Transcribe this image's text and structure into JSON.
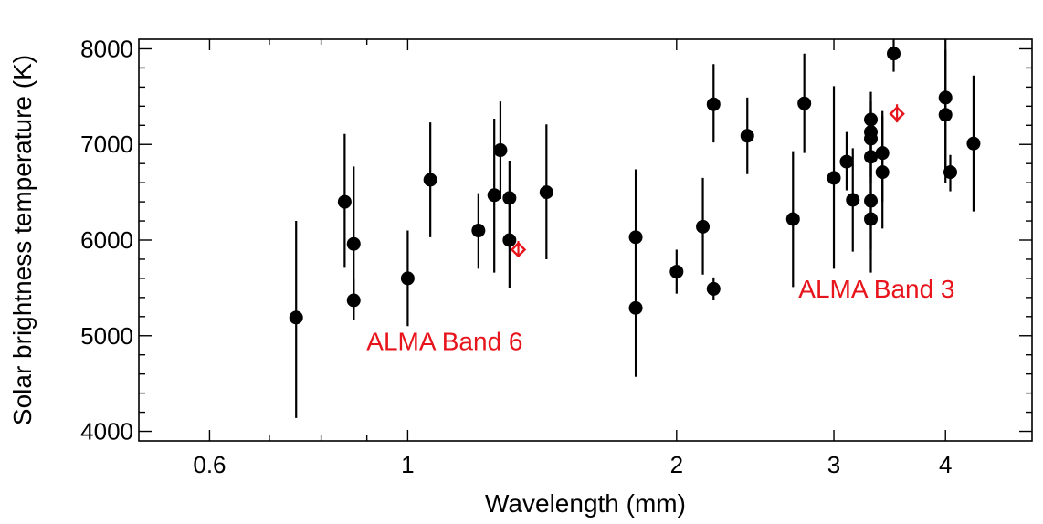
{
  "chart_data": {
    "type": "scatter",
    "title": "",
    "xlabel": "Wavelength (mm)",
    "ylabel": "Solar brightness temperature (K)",
    "x_scale": "log",
    "xlim": [
      0.5,
      5.0
    ],
    "ylim": [
      3900,
      8100
    ],
    "x_ticks": [
      {
        "value": 0.6,
        "label": "0.6"
      },
      {
        "value": 1,
        "label": "1"
      },
      {
        "value": 2,
        "label": "2"
      },
      {
        "value": 3,
        "label": "3"
      },
      {
        "value": 4,
        "label": "4"
      }
    ],
    "y_ticks": [
      {
        "value": 4000,
        "label": "4000"
      },
      {
        "value": 5000,
        "label": "5000"
      },
      {
        "value": 6000,
        "label": "6000"
      },
      {
        "value": 7000,
        "label": "7000"
      },
      {
        "value": 8000,
        "label": "8000"
      }
    ],
    "grid": false,
    "colors": {
      "measurements": "#000000",
      "alma": "#e8141c"
    },
    "series": [
      {
        "marker": "filled-circle",
        "points": [
          {
            "x": 0.75,
            "y": 5190,
            "ylo": 4140,
            "yhi": 6200
          },
          {
            "x": 0.85,
            "y": 6400,
            "ylo": 5710,
            "yhi": 7110
          },
          {
            "x": 0.87,
            "y": 5960,
            "ylo": 5160,
            "yhi": 6770
          },
          {
            "x": 0.87,
            "y": 5370,
            "ylo": 5160,
            "yhi": 5590
          },
          {
            "x": 1.0,
            "y": 5600,
            "ylo": 5100,
            "yhi": 6100
          },
          {
            "x": 1.06,
            "y": 6630,
            "ylo": 6030,
            "yhi": 7230
          },
          {
            "x": 1.2,
            "y": 6100,
            "ylo": 5700,
            "yhi": 6490
          },
          {
            "x": 1.25,
            "y": 6470,
            "ylo": 5660,
            "yhi": 7270
          },
          {
            "x": 1.27,
            "y": 6940,
            "ylo": 6430,
            "yhi": 7450
          },
          {
            "x": 1.3,
            "y": 6440,
            "ylo": 6010,
            "yhi": 6830
          },
          {
            "x": 1.3,
            "y": 6000,
            "ylo": 5500,
            "yhi": 6500
          },
          {
            "x": 1.43,
            "y": 6500,
            "ylo": 5800,
            "yhi": 7210
          },
          {
            "x": 1.8,
            "y": 6030,
            "ylo": 5310,
            "yhi": 6740
          },
          {
            "x": 1.8,
            "y": 5290,
            "ylo": 4570,
            "yhi": 6010
          },
          {
            "x": 2.0,
            "y": 5670,
            "ylo": 5440,
            "yhi": 5900
          },
          {
            "x": 2.14,
            "y": 6140,
            "ylo": 5640,
            "yhi": 6650
          },
          {
            "x": 2.2,
            "y": 7420,
            "ylo": 7020,
            "yhi": 7840
          },
          {
            "x": 2.2,
            "y": 5490,
            "ylo": 5370,
            "yhi": 5610
          },
          {
            "x": 2.4,
            "y": 7090,
            "ylo": 6690,
            "yhi": 7490
          },
          {
            "x": 2.7,
            "y": 6220,
            "ylo": 5510,
            "yhi": 6930
          },
          {
            "x": 2.78,
            "y": 7430,
            "ylo": 6910,
            "yhi": 7950
          },
          {
            "x": 3.0,
            "y": 6650,
            "ylo": 5700,
            "yhi": 7610
          },
          {
            "x": 3.1,
            "y": 6820,
            "ylo": 6520,
            "yhi": 7130
          },
          {
            "x": 3.15,
            "y": 6420,
            "ylo": 5880,
            "yhi": 6960
          },
          {
            "x": 3.3,
            "y": 7260,
            "ylo": 6840,
            "yhi": 7550
          },
          {
            "x": 3.3,
            "y": 7130,
            "ylo": 6660,
            "yhi": 7450
          },
          {
            "x": 3.3,
            "y": 7060,
            "ylo": 6600,
            "yhi": 7370
          },
          {
            "x": 3.3,
            "y": 6870,
            "ylo": 6440,
            "yhi": 7160
          },
          {
            "x": 3.3,
            "y": 6410,
            "ylo": 5660,
            "yhi": 7000
          },
          {
            "x": 3.3,
            "y": 6220,
            "ylo": 5900,
            "yhi": 6500
          },
          {
            "x": 3.4,
            "y": 6910,
            "ylo": 6400,
            "yhi": 7350
          },
          {
            "x": 3.4,
            "y": 6710,
            "ylo": 6120,
            "yhi": 7300
          },
          {
            "x": 3.5,
            "y": 7950,
            "ylo": 7760,
            "yhi": 8100
          },
          {
            "x": 4.0,
            "y": 7490,
            "ylo": 6700,
            "yhi": 8100
          },
          {
            "x": 4.0,
            "y": 7310,
            "ylo": 6600,
            "yhi": 7990
          },
          {
            "x": 4.05,
            "y": 6710,
            "ylo": 6510,
            "yhi": 6890
          },
          {
            "x": 4.3,
            "y": 7010,
            "ylo": 6300,
            "yhi": 7720
          }
        ]
      },
      {
        "name": "ALMA Band 6",
        "marker": "open-diamond",
        "points": [
          {
            "x": 1.33,
            "y": 5900,
            "ylo": 5820,
            "yhi": 5990
          }
        ]
      },
      {
        "name": "ALMA Band 3",
        "marker": "open-diamond",
        "points": [
          {
            "x": 3.53,
            "y": 7320,
            "ylo": 7230,
            "yhi": 7420
          }
        ]
      }
    ],
    "annotations": [
      {
        "text": "ALMA Band 6",
        "x": 1.1,
        "y": 4850
      },
      {
        "text": "ALMA Band 3",
        "x": 3.35,
        "y": 5400
      }
    ]
  }
}
